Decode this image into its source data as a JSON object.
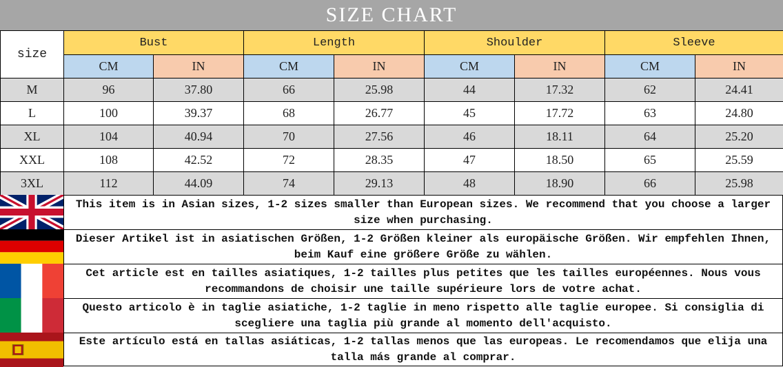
{
  "title": "SIZE CHART",
  "header": {
    "size_label": "size",
    "groups": [
      "Bust",
      "Length",
      "Shoulder",
      "Sleeve"
    ],
    "units": [
      "CM",
      "IN"
    ]
  },
  "rows": [
    {
      "size": "M",
      "values": [
        "96",
        "37.80",
        "66",
        "25.98",
        "44",
        "17.32",
        "62",
        "24.41"
      ]
    },
    {
      "size": "L",
      "values": [
        "100",
        "39.37",
        "68",
        "26.77",
        "45",
        "17.72",
        "63",
        "24.80"
      ]
    },
    {
      "size": "XL",
      "values": [
        "104",
        "40.94",
        "70",
        "27.56",
        "46",
        "18.11",
        "64",
        "25.20"
      ]
    },
    {
      "size": "XXL",
      "values": [
        "108",
        "42.52",
        "72",
        "28.35",
        "47",
        "18.50",
        "65",
        "25.59"
      ]
    },
    {
      "size": "3XL",
      "values": [
        "112",
        "44.09",
        "74",
        "29.13",
        "48",
        "18.90",
        "66",
        "25.98"
      ]
    }
  ],
  "notes": [
    {
      "flag": "uk-flag-icon",
      "text": "This item is in Asian sizes, 1-2 sizes smaller than European sizes. We recommend that you choose a larger size when purchasing."
    },
    {
      "flag": "germany-flag-icon",
      "text": "Dieser Artikel ist in asiatischen Größen, 1-2 Größen kleiner als europäische Größen. Wir empfehlen Ihnen, beim Kauf eine größere Größe zu wählen."
    },
    {
      "flag": "france-flag-icon",
      "text": "Cet article est en tailles asiatiques, 1-2 tailles plus petites que les tailles européennes. Nous vous recommandons de choisir une taille supérieure lors de votre achat."
    },
    {
      "flag": "italy-flag-icon",
      "text": "Questo articolo è in taglie asiatiche, 1-2 taglie in meno rispetto alle taglie europee. Si consiglia di scegliere una taglia più grande al momento dell'acquisto."
    },
    {
      "flag": "spain-flag-icon",
      "text": "Este artículo está en tallas asiáticas, 1-2 tallas menos que las europeas. Le recomendamos que elija una talla más grande al comprar."
    }
  ],
  "colors": {
    "title_bg": "#a6a6a6",
    "group_header": "#ffd966",
    "cm_header": "#bdd7ee",
    "in_header": "#f8cbad",
    "row_alt": "#d9d9d9"
  }
}
